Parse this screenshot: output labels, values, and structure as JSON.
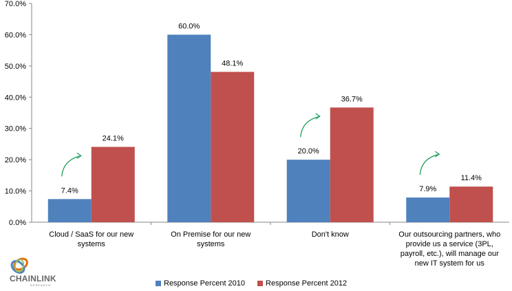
{
  "chart_data": {
    "type": "bar",
    "categories": [
      "Cloud / SaaS for our new systems",
      "On Premise for our new systems",
      "Don't know",
      "Our outsourcing partners, who provide us a service (3PL, payroll, etc.), will manage our new IT system for us"
    ],
    "category_label_lines": [
      [
        "Cloud / SaaS for our new",
        "systems"
      ],
      [
        "On Premise for our new",
        "systems"
      ],
      [
        "Don't know"
      ],
      [
        "Our outsourcing partners, who",
        "provide us a service (3PL,",
        "payroll, etc.), will manage our",
        "new IT system for us"
      ]
    ],
    "series": [
      {
        "name": "Response Percent 2010",
        "color": "#4F81BD",
        "values": [
          7.4,
          60.0,
          20.0,
          7.9
        ],
        "labels": [
          "7.4%",
          "60.0%",
          "20.0%",
          "7.9%"
        ]
      },
      {
        "name": "Response Percent 2012",
        "color": "#C0504D",
        "values": [
          24.1,
          48.1,
          36.7,
          11.4
        ],
        "labels": [
          "24.1%",
          "48.1%",
          "36.7%",
          "11.4%"
        ]
      }
    ],
    "ylim": [
      0,
      70
    ],
    "yticks": [
      0,
      10,
      20,
      30,
      40,
      50,
      60,
      70
    ],
    "ytick_labels": [
      "0.0%",
      "10.0%",
      "20.0%",
      "30.0%",
      "40.0%",
      "50.0%",
      "60.0%",
      "70.0%"
    ],
    "title": "",
    "xlabel": "",
    "ylabel": "",
    "grid": false,
    "legend_position": "bottom",
    "annotations": [
      "increase-arrow",
      "increase-arrow",
      "increase-arrow"
    ]
  },
  "logo": {
    "text": "CHAINLINK",
    "subtext": "RESEARCH",
    "colors": [
      "#E46C0A",
      "#C0504D",
      "#4F81BD",
      "#9BBB59"
    ]
  }
}
